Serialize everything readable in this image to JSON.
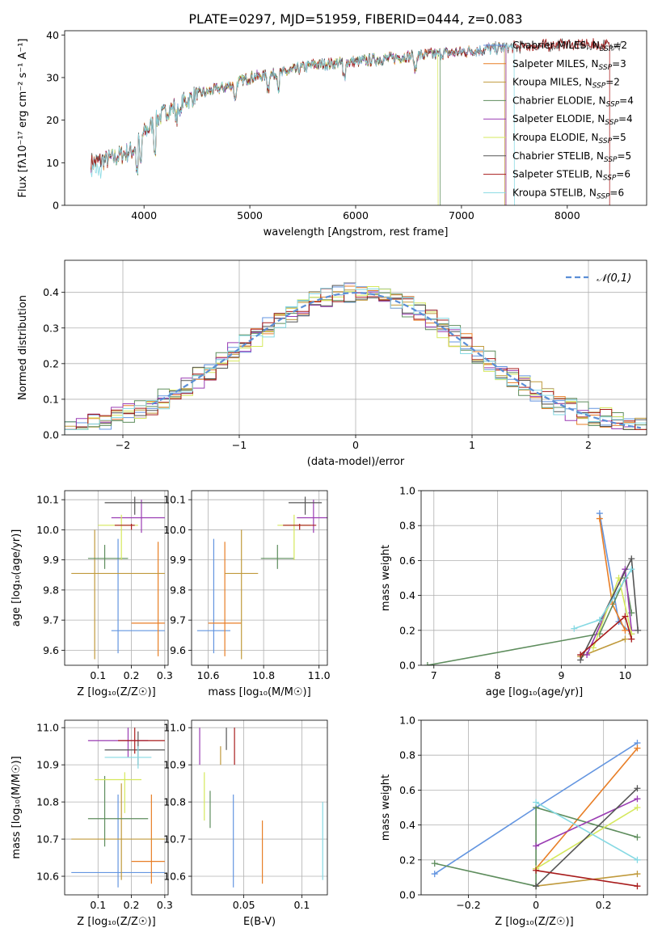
{
  "figure_title": "PLATE=0297, MJD=51959, FIBERID=0444, z=0.083",
  "models": [
    {
      "name": "Chabrier MILES",
      "nssp": "2",
      "color": "#6395e0"
    },
    {
      "name": "Salpeter MILES",
      "nssp": "3",
      "color": "#e87e26"
    },
    {
      "name": "Kroupa MILES",
      "nssp": "2",
      "color": "#c09a3c"
    },
    {
      "name": "Chabrier ELODIE",
      "nssp": "4",
      "color": "#5e8d5d"
    },
    {
      "name": "Salpeter ELODIE",
      "nssp": "4",
      "color": "#9a3cb3"
    },
    {
      "name": "Kroupa ELODIE",
      "nssp": "5",
      "color": "#d5e85c"
    },
    {
      "name": "Chabrier STELIB",
      "nssp": "5",
      "color": "#555555"
    },
    {
      "name": "Salpeter STELIB",
      "nssp": "6",
      "color": "#a81c1c"
    },
    {
      "name": "Kroupa STELIB",
      "nssp": "6",
      "color": "#86d9e3"
    }
  ],
  "chart_data": [
    {
      "id": "spectrum",
      "type": "line",
      "xlabel": "wavelength [Angstrom, rest frame]",
      "ylabel": "Flux [fλ10⁻¹⁷ erg cm⁻² s⁻¹ A⁻¹]",
      "xlim": [
        3250,
        8750
      ],
      "ylim": [
        0,
        41
      ],
      "xticks": [
        4000,
        5000,
        6000,
        7000,
        8000
      ],
      "yticks": [
        0,
        10,
        20,
        30,
        40
      ],
      "legend_position": "top-right",
      "continuum": [
        [
          3500,
          10
        ],
        [
          3700,
          11
        ],
        [
          3900,
          13
        ],
        [
          4000,
          17
        ],
        [
          4200,
          22
        ],
        [
          4500,
          26
        ],
        [
          4800,
          28
        ],
        [
          5000,
          30
        ],
        [
          5300,
          31
        ],
        [
          5600,
          33
        ],
        [
          5900,
          33.5
        ],
        [
          6100,
          34
        ],
        [
          6500,
          35
        ],
        [
          7000,
          36
        ],
        [
          7400,
          37
        ],
        [
          7800,
          37.5
        ],
        [
          8000,
          37.8
        ],
        [
          8500,
          37.5
        ]
      ],
      "absorption_lines": [
        3934,
        3969,
        4101,
        4304,
        4340,
        4861,
        5175,
        5270,
        5890,
        6563
      ],
      "series_end_wavelengths": [
        7420,
        7420,
        7410,
        6800,
        7420,
        6780,
        8520,
        8400,
        7500
      ]
    },
    {
      "id": "residuals",
      "type": "histogram",
      "xlabel": "(data-model)/error",
      "ylabel": "Normed distribution",
      "xlim": [
        -2.5,
        2.5
      ],
      "ylim": [
        0,
        0.49
      ],
      "xticks": [
        -2,
        -1,
        0,
        1,
        2
      ],
      "yticks": [
        0.0,
        0.1,
        0.2,
        0.3,
        0.4
      ],
      "legend": "𝒩(0,1)",
      "legend_position": "top-right",
      "grid": true
    },
    {
      "id": "age_vs_Z",
      "type": "scatter",
      "xlabel": "Z [log₁₀(Z/Z☉)]",
      "ylabel": "age  [log₁₀(age/yr)]",
      "xlim": [
        0.0,
        0.31
      ],
      "ylim": [
        9.55,
        10.13
      ],
      "xticks": [
        0.1,
        0.2,
        0.3
      ],
      "yticks": [
        9.6,
        9.7,
        9.8,
        9.9,
        10.0,
        10.1
      ],
      "grid": true,
      "points": [
        {
          "x": 0.16,
          "y": 9.665,
          "xerr": [
            0.14,
            0.3
          ],
          "yerr": [
            9.59,
            9.97
          ]
        },
        {
          "x": 0.28,
          "y": 9.69,
          "xerr": [
            0.2,
            0.3
          ],
          "yerr": [
            9.58,
            9.96
          ]
        },
        {
          "x": 0.09,
          "y": 9.855,
          "xerr": [
            0.02,
            0.3
          ],
          "yerr": [
            9.57,
            10.0
          ]
        },
        {
          "x": 0.12,
          "y": 9.905,
          "xerr": [
            0.07,
            0.19
          ],
          "yerr": [
            9.87,
            9.95
          ]
        },
        {
          "x": 0.23,
          "y": 10.04,
          "xerr": [
            0.14,
            0.3
          ],
          "yerr": [
            9.99,
            10.1
          ]
        },
        {
          "x": 0.17,
          "y": 10.015,
          "xerr": [
            0.1,
            0.22
          ],
          "yerr": [
            9.9,
            10.05
          ]
        },
        {
          "x": 0.21,
          "y": 10.09,
          "xerr": [
            0.12,
            0.3
          ],
          "yerr": [
            10.05,
            10.11
          ]
        },
        {
          "x": 0.2,
          "y": 10.015,
          "xerr": [
            0.15,
            0.21
          ],
          "yerr": [
            10.0,
            10.02
          ]
        }
      ]
    },
    {
      "id": "age_vs_mass",
      "type": "scatter",
      "xlabel": "mass [log₁₀(M/M☉)]",
      "ylabel": "",
      "xlim": [
        10.54,
        11.03
      ],
      "ylim": [
        9.55,
        10.13
      ],
      "xticks": [
        10.6,
        10.8,
        11.0
      ],
      "yticks": [
        9.6,
        9.7,
        9.8,
        9.9,
        10.0,
        10.1
      ],
      "grid": true
    },
    {
      "id": "weight_vs_age",
      "type": "line",
      "xlabel": "age  [log₁₀(age/yr)]",
      "ylabel": "mass weight",
      "xlim": [
        6.8,
        10.35
      ],
      "ylim": [
        0.0,
        1.0
      ],
      "xticks": [
        7,
        8,
        9,
        10
      ],
      "yticks": [
        0.0,
        0.2,
        0.4,
        0.6,
        0.8,
        1.0
      ],
      "grid": true,
      "series": [
        {
          "points": [
            [
              9.6,
              0.87
            ],
            [
              9.9,
              0.25
            ],
            [
              10.1,
              0.18
            ]
          ]
        },
        {
          "points": [
            [
              9.6,
              0.84
            ],
            [
              9.8,
              0.35
            ],
            [
              10.0,
              0.2
            ]
          ]
        },
        {
          "points": [
            [
              9.3,
              0.05
            ],
            [
              10.0,
              0.15
            ]
          ]
        },
        {
          "points": [
            [
              6.9,
              0.0
            ],
            [
              9.6,
              0.18
            ],
            [
              10.0,
              0.5
            ],
            [
              10.1,
              0.3
            ]
          ]
        },
        {
          "points": [
            [
              9.4,
              0.06
            ],
            [
              10.0,
              0.55
            ],
            [
              10.1,
              0.2
            ]
          ]
        },
        {
          "points": [
            [
              9.5,
              0.1
            ],
            [
              9.9,
              0.5
            ],
            [
              10.1,
              0.18
            ]
          ]
        },
        {
          "points": [
            [
              9.3,
              0.03
            ],
            [
              10.1,
              0.61
            ],
            [
              10.2,
              0.2
            ]
          ]
        },
        {
          "points": [
            [
              9.3,
              0.06
            ],
            [
              10.0,
              0.28
            ],
            [
              10.1,
              0.15
            ]
          ]
        },
        {
          "points": [
            [
              9.2,
              0.21
            ],
            [
              9.6,
              0.26
            ],
            [
              10.1,
              0.55
            ]
          ]
        }
      ]
    },
    {
      "id": "mass_vs_Z",
      "type": "scatter",
      "xlabel": "Z [log₁₀(Z/Z☉)]",
      "ylabel": "mass [log₁₀(M/M☉)]",
      "xlim": [
        0.0,
        0.31
      ],
      "ylim": [
        10.55,
        11.02
      ],
      "xticks": [
        0.1,
        0.2,
        0.3
      ],
      "yticks": [
        10.6,
        10.7,
        10.8,
        10.9,
        11.0
      ],
      "grid": true
    },
    {
      "id": "mass_vs_ebv",
      "type": "scatter",
      "xlabel": "E(B-V)",
      "ylabel": "",
      "xlim": [
        0.005,
        0.122
      ],
      "ylim": [
        10.55,
        11.02
      ],
      "xticks": [
        0.05,
        0.1
      ],
      "yticks": [
        10.6,
        10.7,
        10.8,
        10.9,
        11.0
      ],
      "grid": true
    },
    {
      "id": "weight_vs_Z",
      "type": "line",
      "xlabel": "Z [log₁₀(Z/Z☉)]",
      "ylabel": "mass weight",
      "xlim": [
        -0.34,
        0.33
      ],
      "ylim": [
        0.0,
        1.0
      ],
      "xticks": [
        -0.2,
        0.0,
        0.2
      ],
      "yticks": [
        0.0,
        0.2,
        0.4,
        0.6,
        0.8,
        1.0
      ],
      "grid": true,
      "series": [
        {
          "points": [
            [
              -0.3,
              0.12
            ],
            [
              0.0,
              0.5
            ],
            [
              0.3,
              0.87
            ]
          ]
        },
        {
          "points": [
            [
              0.0,
              0.15
            ],
            [
              0.3,
              0.84
            ]
          ]
        },
        {
          "points": [
            [
              0.0,
              0.05
            ],
            [
              0.3,
              0.12
            ]
          ]
        },
        {
          "points": [
            [
              -0.3,
              0.18
            ],
            [
              0.0,
              0.05
            ],
            [
              0.0,
              0.5
            ],
            [
              0.3,
              0.33
            ]
          ]
        },
        {
          "points": [
            [
              0.0,
              0.28
            ],
            [
              0.3,
              0.55
            ]
          ]
        },
        {
          "points": [
            [
              0.0,
              0.15
            ],
            [
              0.3,
              0.5
            ]
          ]
        },
        {
          "points": [
            [
              0.0,
              0.05
            ],
            [
              0.3,
              0.61
            ]
          ]
        },
        {
          "points": [
            [
              0.0,
              0.14
            ],
            [
              0.3,
              0.05
            ]
          ]
        },
        {
          "points": [
            [
              0.0,
              0.53
            ],
            [
              0.3,
              0.2
            ]
          ]
        }
      ]
    }
  ]
}
